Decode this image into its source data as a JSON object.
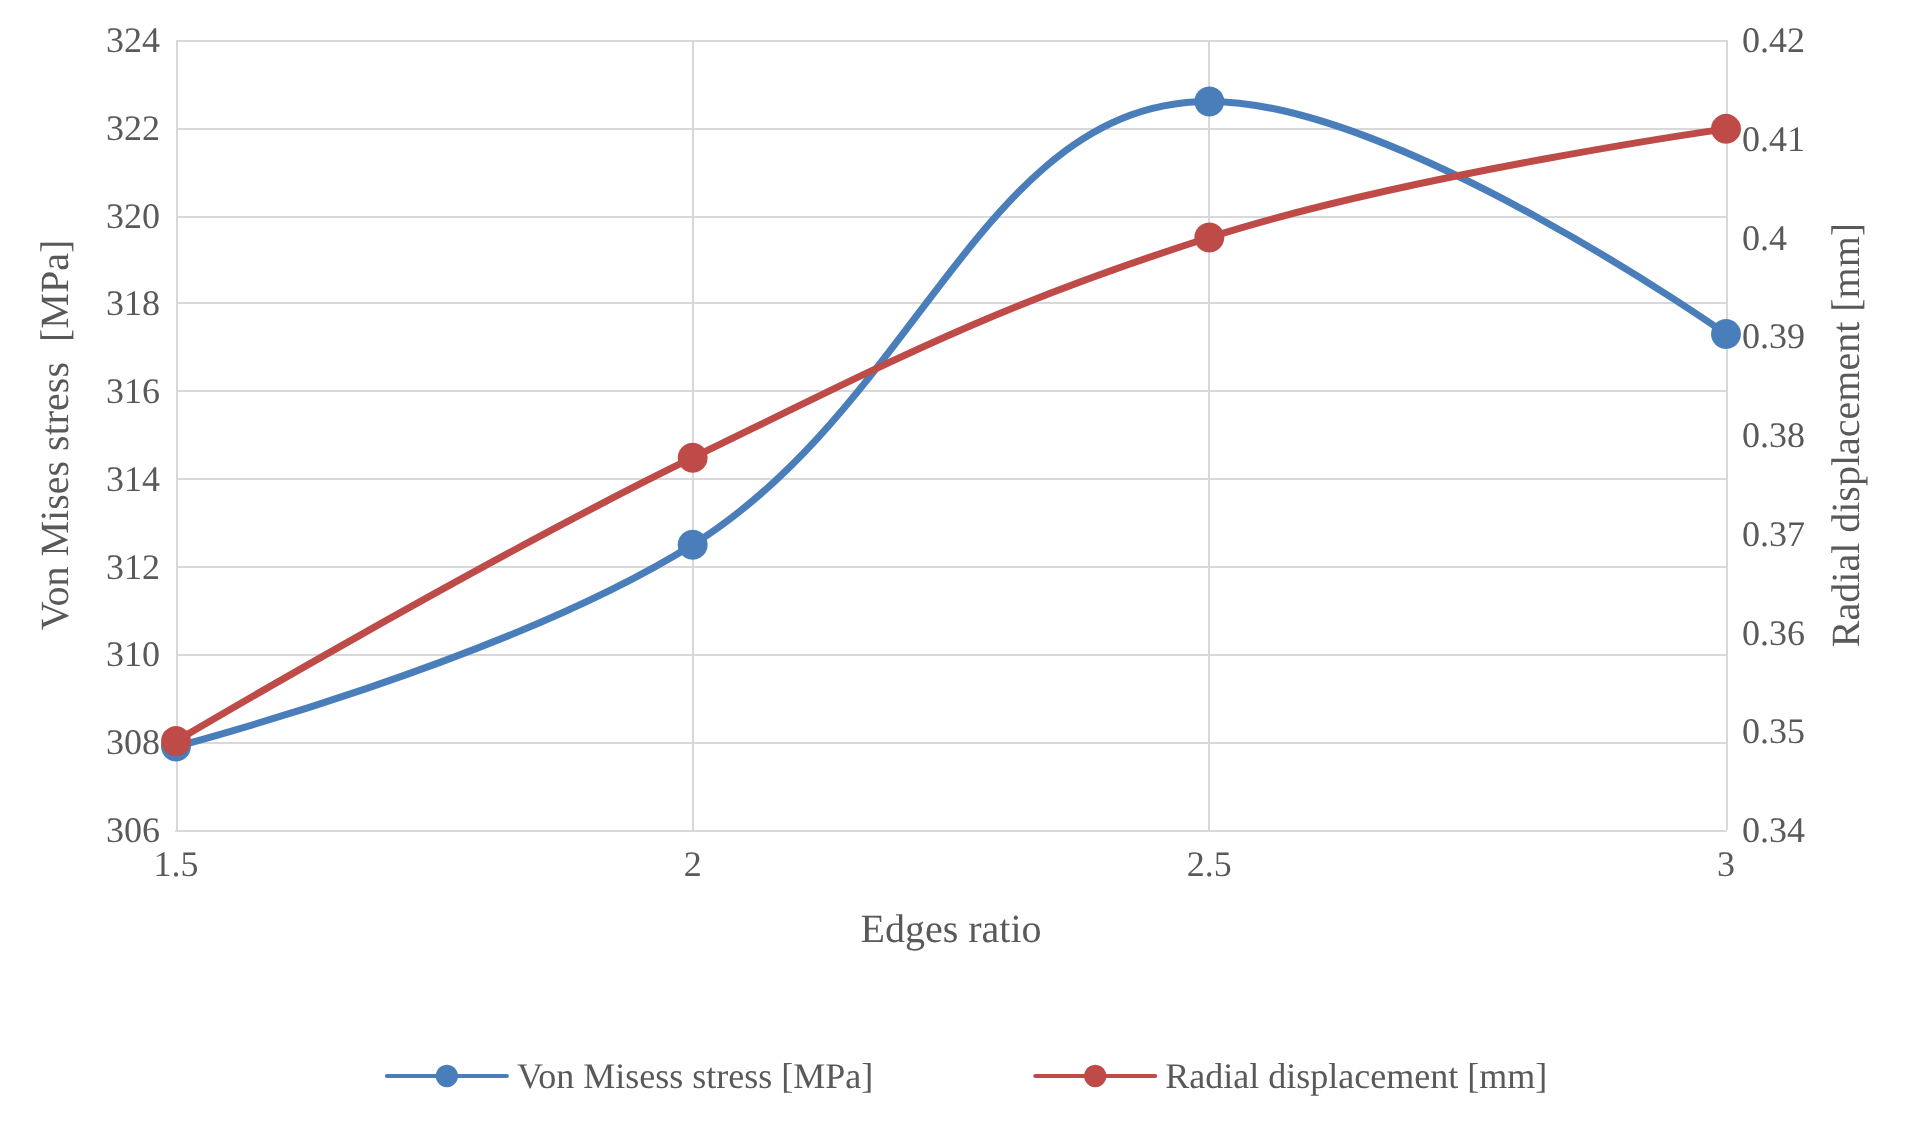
{
  "chart_data": {
    "type": "line",
    "xlabel": "Edges ratio",
    "ylabel": "Von Mises stress  [MPa]",
    "y2label": "Radial displacement [mm]",
    "x": [
      1.5,
      2,
      2.5,
      3
    ],
    "series": [
      {
        "name": "Von Misess stress [MPa]",
        "color": "#4a7ebb",
        "values": [
          307.9,
          312.5,
          322.6,
          317.3
        ]
      },
      {
        "name": "Radial displacement [mm]",
        "color": "#be4b48",
        "values": [
          0.349,
          0.3777,
          0.4,
          0.411
        ],
        "axis": "y2"
      }
    ],
    "xlim": [
      1.5,
      3
    ],
    "xticks": [
      1.5,
      2,
      2.5,
      3
    ],
    "ylim": [
      306,
      324
    ],
    "yticks": [
      306,
      308,
      310,
      312,
      314,
      316,
      318,
      320,
      322,
      324
    ],
    "y2lim": [
      0.34,
      0.42
    ],
    "y2ticks": [
      0.34,
      0.35,
      0.36,
      0.37,
      0.38,
      0.39,
      0.4,
      0.41,
      0.42
    ],
    "grid": true,
    "legend": "bottom",
    "marker": "circle",
    "line_style": "solid"
  }
}
